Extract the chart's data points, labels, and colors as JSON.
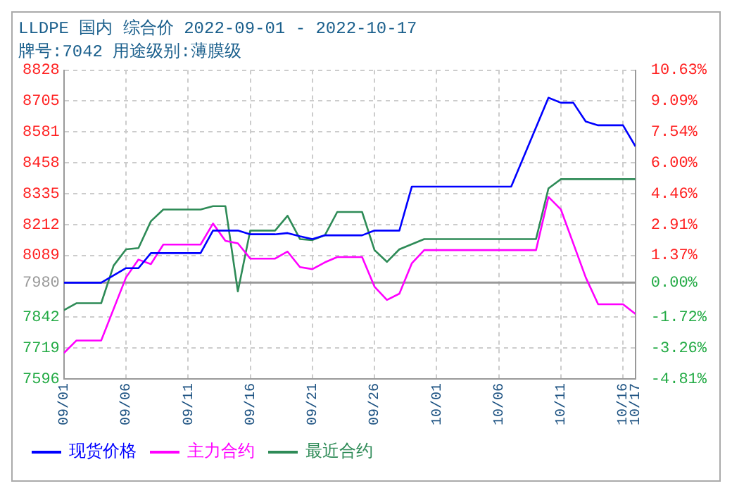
{
  "chart_data": {
    "type": "line",
    "title": "LLDPE 国内 综合价 2022-09-01 - 2022-10-17",
    "subtitle": "牌号:7042 用途级别:薄膜级",
    "xlim": [
      "2022-09-01",
      "2022-10-17"
    ],
    "xticks": [
      {
        "value": "2022-09-01",
        "label": "09/01"
      },
      {
        "value": "2022-09-06",
        "label": "09/06"
      },
      {
        "value": "2022-09-11",
        "label": "09/11"
      },
      {
        "value": "2022-09-16",
        "label": "09/16"
      },
      {
        "value": "2022-09-21",
        "label": "09/21"
      },
      {
        "value": "2022-09-26",
        "label": "09/26"
      },
      {
        "value": "2022-10-01",
        "label": "10/01"
      },
      {
        "value": "2022-10-06",
        "label": "10/06"
      },
      {
        "value": "2022-10-11",
        "label": "10/11"
      },
      {
        "value": "2022-10-16",
        "label": "10/16"
      },
      {
        "value": "2022-10-17",
        "label": "10/17"
      }
    ],
    "ylim": [
      7596,
      8828
    ],
    "yticks": [
      7596,
      7719,
      7842,
      7980,
      8089,
      8212,
      8335,
      8458,
      8581,
      8705,
      8828
    ],
    "y2lim": [
      -4.81,
      10.63
    ],
    "y2ticks": [
      {
        "value": -4.81,
        "label": "-4.81%"
      },
      {
        "value": -3.26,
        "label": "-3.26%"
      },
      {
        "value": -1.72,
        "label": "-1.72%"
      },
      {
        "value": 0,
        "label": "0.00%"
      },
      {
        "value": 1.37,
        "label": "1.37%"
      },
      {
        "value": 2.91,
        "label": "2.91%"
      },
      {
        "value": 4.46,
        "label": "4.46%"
      },
      {
        "value": 6.0,
        "label": "6.00%"
      },
      {
        "value": 7.54,
        "label": "7.54%"
      },
      {
        "value": 9.09,
        "label": "9.09%"
      },
      {
        "value": 10.63,
        "label": "10.63%"
      }
    ],
    "ref_lines": [
      {
        "axis": "y",
        "value": 7980,
        "color": "#999999"
      }
    ],
    "grid": true,
    "legend": "bottom",
    "marker": "none",
    "line_style": "solid",
    "series": [
      {
        "name": "现货价格",
        "color": "#0000ff",
        "x": [
          "2022-09-01",
          "2022-09-04",
          "2022-09-06",
          "2022-09-07",
          "2022-09-08",
          "2022-09-12",
          "2022-09-13",
          "2022-09-15",
          "2022-09-16",
          "2022-09-18",
          "2022-09-19",
          "2022-09-20",
          "2022-09-21",
          "2022-09-22",
          "2022-09-25",
          "2022-09-26",
          "2022-09-28",
          "2022-09-29",
          "2022-10-07",
          "2022-10-10",
          "2022-10-11",
          "2022-10-12",
          "2022-10-13",
          "2022-10-14",
          "2022-10-16",
          "2022-10-17"
        ],
        "values": [
          7980,
          7980,
          8038,
          8038,
          8098,
          8098,
          8188,
          8188,
          8173,
          8173,
          8178,
          8165,
          8154,
          8169,
          8169,
          8188,
          8188,
          8363,
          8363,
          8718,
          8698,
          8698,
          8623,
          8608,
          8608,
          8524
        ]
      },
      {
        "name": "主力合约",
        "color": "#ff00ff",
        "x": [
          "2022-09-01",
          "2022-09-02",
          "2022-09-04",
          "2022-09-06",
          "2022-09-07",
          "2022-09-08",
          "2022-09-09",
          "2022-09-12",
          "2022-09-13",
          "2022-09-14",
          "2022-09-15",
          "2022-09-16",
          "2022-09-18",
          "2022-09-19",
          "2022-09-20",
          "2022-09-21",
          "2022-09-22",
          "2022-09-23",
          "2022-09-25",
          "2022-09-26",
          "2022-09-27",
          "2022-09-28",
          "2022-09-29",
          "2022-09-30",
          "2022-10-09",
          "2022-10-10",
          "2022-10-11",
          "2022-10-13",
          "2022-10-14",
          "2022-10-16",
          "2022-10-17"
        ],
        "values": [
          7699,
          7749,
          7749,
          8001,
          8072,
          8054,
          8132,
          8132,
          8216,
          8147,
          8137,
          8076,
          8076,
          8104,
          8042,
          8034,
          8061,
          8082,
          8082,
          7964,
          7911,
          7936,
          8057,
          8110,
          8110,
          8322,
          8272,
          8001,
          7894,
          7894,
          7855
        ]
      },
      {
        "name": "最近合约",
        "color": "#2e8b57",
        "x": [
          "2022-09-01",
          "2022-09-02",
          "2022-09-04",
          "2022-09-05",
          "2022-09-06",
          "2022-09-07",
          "2022-09-08",
          "2022-09-09",
          "2022-09-12",
          "2022-09-13",
          "2022-09-14",
          "2022-09-15",
          "2022-09-16",
          "2022-09-18",
          "2022-09-19",
          "2022-09-20",
          "2022-09-21",
          "2022-09-22",
          "2022-09-23",
          "2022-09-25",
          "2022-09-26",
          "2022-09-27",
          "2022-09-28",
          "2022-09-30",
          "2022-10-09",
          "2022-10-10",
          "2022-10-11",
          "2022-10-17"
        ],
        "values": [
          7870,
          7898,
          7898,
          8048,
          8113,
          8118,
          8225,
          8272,
          8272,
          8285,
          8285,
          7945,
          8188,
          8188,
          8247,
          8154,
          8150,
          8169,
          8262,
          8262,
          8110,
          8063,
          8113,
          8154,
          8154,
          8356,
          8393,
          8393
        ]
      }
    ]
  }
}
